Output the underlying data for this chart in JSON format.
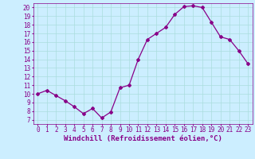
{
  "x": [
    0,
    1,
    2,
    3,
    4,
    5,
    6,
    7,
    8,
    9,
    10,
    11,
    12,
    13,
    14,
    15,
    16,
    17,
    18,
    19,
    20,
    21,
    22,
    23
  ],
  "y": [
    10.0,
    10.4,
    9.8,
    9.2,
    8.5,
    7.7,
    8.3,
    7.2,
    7.9,
    10.7,
    11.0,
    14.0,
    16.3,
    17.0,
    17.7,
    19.2,
    20.1,
    20.2,
    20.0,
    18.3,
    16.6,
    16.3,
    15.0,
    13.5
  ],
  "line_color": "#880088",
  "marker": "D",
  "markersize": 2.0,
  "linewidth": 0.9,
  "xlabel": "Windchill (Refroidissement éolien,°C)",
  "xlabel_fontsize": 6.5,
  "bg_color": "#cceeff",
  "grid_color": "#aadddd",
  "xlim": [
    -0.5,
    23.5
  ],
  "ylim": [
    6.5,
    20.5
  ],
  "yticks": [
    7,
    8,
    9,
    10,
    11,
    12,
    13,
    14,
    15,
    16,
    17,
    18,
    19,
    20
  ],
  "xticks": [
    0,
    1,
    2,
    3,
    4,
    5,
    6,
    7,
    8,
    9,
    10,
    11,
    12,
    13,
    14,
    15,
    16,
    17,
    18,
    19,
    20,
    21,
    22,
    23
  ],
  "tick_fontsize": 5.5,
  "axis_color": "#880088"
}
